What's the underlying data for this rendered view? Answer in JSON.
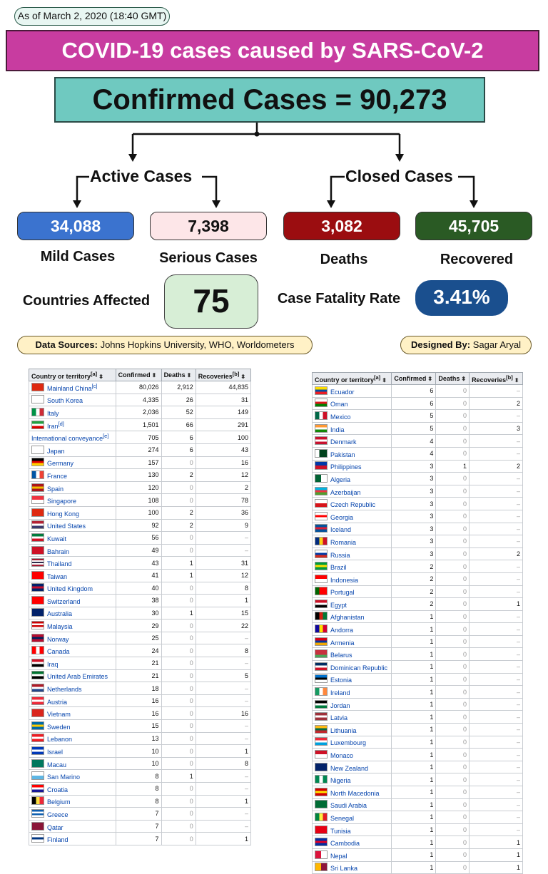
{
  "as_of": "As of March 2, 2020 (18:40 GMT)",
  "banner_title": "COVID-19 cases caused by SARS-CoV-2",
  "confirmed_text": "Confirmed Cases = 90,273",
  "active_label": "Active Cases",
  "closed_label": "Closed Cases",
  "stats": {
    "mild": {
      "value": "34,088",
      "label": "Mild Cases",
      "color": "#3b73cf"
    },
    "serious": {
      "value": "7,398",
      "label": "Serious Cases",
      "color": "#fde6e8"
    },
    "deaths": {
      "value": "3,082",
      "label": "Deaths",
      "color": "#9b0d10"
    },
    "recovered": {
      "value": "45,705",
      "label": "Recovered",
      "color": "#2a5a24"
    }
  },
  "countries_label": "Countries Affected",
  "countries_value": "75",
  "cfr_label": "Case Fatality Rate",
  "cfr_value": "3.41%",
  "sources_label": "Data Sources:",
  "sources_text": "Johns Hopkins University, WHO, Worldometers",
  "designer_label": "Designed By:",
  "designer_text": "Sagar Aryal",
  "table_headers": {
    "country": "Country or territory",
    "country_note": "[a]",
    "confirmed": "Confirmed",
    "deaths": "Deaths",
    "recoveries": "Recoveries",
    "recoveries_note": "[b]",
    "sort_icon": "⬍"
  },
  "table_left": [
    {
      "country": "Mainland China",
      "note": "[c]",
      "confirmed": "80,026",
      "deaths": "2,912",
      "recoveries": "44,835",
      "flag": [
        "#de2910"
      ]
    },
    {
      "country": "South Korea",
      "confirmed": "4,335",
      "deaths": "26",
      "recoveries": "31",
      "flag": [
        "#ffffff"
      ]
    },
    {
      "country": "Italy",
      "confirmed": "2,036",
      "deaths": "52",
      "recoveries": "149",
      "flag": [
        "#009246",
        "#ffffff",
        "#ce2b37"
      ],
      "dir": "v"
    },
    {
      "country": "Iran",
      "note": "[d]",
      "confirmed": "1,501",
      "deaths": "66",
      "recoveries": "291",
      "flag": [
        "#239f40",
        "#ffffff",
        "#da0000"
      ]
    },
    {
      "country": "International conveyance",
      "note": "[e]",
      "confirmed": "705",
      "deaths": "6",
      "recoveries": "100",
      "flag": []
    },
    {
      "country": "Japan",
      "confirmed": "274",
      "deaths": "6",
      "recoveries": "43",
      "flag": [
        "#ffffff"
      ]
    },
    {
      "country": "Germany",
      "confirmed": "157",
      "deaths": "0",
      "recoveries": "16",
      "flag": [
        "#000000",
        "#dd0000",
        "#ffce00"
      ]
    },
    {
      "country": "France",
      "confirmed": "130",
      "deaths": "2",
      "recoveries": "12",
      "flag": [
        "#0055a4",
        "#ffffff",
        "#ef4135"
      ],
      "dir": "v"
    },
    {
      "country": "Spain",
      "confirmed": "120",
      "deaths": "0",
      "recoveries": "2",
      "flag": [
        "#aa151b",
        "#f1bf00",
        "#aa151b"
      ]
    },
    {
      "country": "Singapore",
      "confirmed": "108",
      "deaths": "0",
      "recoveries": "78",
      "flag": [
        "#ef3340",
        "#ffffff"
      ]
    },
    {
      "country": "Hong Kong",
      "confirmed": "100",
      "deaths": "2",
      "recoveries": "36",
      "flag": [
        "#de2910"
      ]
    },
    {
      "country": "United States",
      "confirmed": "92",
      "deaths": "2",
      "recoveries": "9",
      "flag": [
        "#b22234",
        "#ffffff",
        "#3c3b6e"
      ]
    },
    {
      "country": "Kuwait",
      "confirmed": "56",
      "deaths": "0",
      "recoveries": "–",
      "flag": [
        "#007a3d",
        "#ffffff",
        "#ce1126"
      ]
    },
    {
      "country": "Bahrain",
      "confirmed": "49",
      "deaths": "0",
      "recoveries": "–",
      "flag": [
        "#ce1126"
      ]
    },
    {
      "country": "Thailand",
      "confirmed": "43",
      "deaths": "1",
      "recoveries": "31",
      "flag": [
        "#a51931",
        "#ffffff",
        "#2d2a4a",
        "#ffffff",
        "#a51931"
      ]
    },
    {
      "country": "Taiwan",
      "confirmed": "41",
      "deaths": "1",
      "recoveries": "12",
      "flag": [
        "#fe0000"
      ]
    },
    {
      "country": "United Kingdom",
      "confirmed": "40",
      "deaths": "0",
      "recoveries": "8",
      "flag": [
        "#012169",
        "#c8102e",
        "#012169"
      ]
    },
    {
      "country": "Switzerland",
      "confirmed": "38",
      "deaths": "0",
      "recoveries": "1",
      "flag": [
        "#ff0000"
      ]
    },
    {
      "country": "Australia",
      "confirmed": "30",
      "deaths": "1",
      "recoveries": "15",
      "flag": [
        "#012169"
      ]
    },
    {
      "country": "Malaysia",
      "confirmed": "29",
      "deaths": "0",
      "recoveries": "22",
      "flag": [
        "#cc0001",
        "#ffffff",
        "#cc0001",
        "#ffffff"
      ]
    },
    {
      "country": "Norway",
      "confirmed": "25",
      "deaths": "0",
      "recoveries": "–",
      "flag": [
        "#ba0c2f",
        "#00205b",
        "#ba0c2f"
      ]
    },
    {
      "country": "Canada",
      "confirmed": "24",
      "deaths": "0",
      "recoveries": "8",
      "flag": [
        "#ff0000",
        "#ffffff",
        "#ff0000"
      ],
      "dir": "v"
    },
    {
      "country": "Iraq",
      "confirmed": "21",
      "deaths": "0",
      "recoveries": "–",
      "flag": [
        "#ce1126",
        "#ffffff",
        "#000000"
      ]
    },
    {
      "country": "United Arab Emirates",
      "confirmed": "21",
      "deaths": "0",
      "recoveries": "5",
      "flag": [
        "#00732f",
        "#ffffff",
        "#000000"
      ]
    },
    {
      "country": "Netherlands",
      "confirmed": "18",
      "deaths": "0",
      "recoveries": "–",
      "flag": [
        "#ae1c28",
        "#ffffff",
        "#21468b"
      ]
    },
    {
      "country": "Austria",
      "confirmed": "16",
      "deaths": "0",
      "recoveries": "–",
      "flag": [
        "#ed2939",
        "#ffffff",
        "#ed2939"
      ]
    },
    {
      "country": "Vietnam",
      "confirmed": "16",
      "deaths": "0",
      "recoveries": "16",
      "flag": [
        "#da251d"
      ]
    },
    {
      "country": "Sweden",
      "confirmed": "15",
      "deaths": "0",
      "recoveries": "–",
      "flag": [
        "#006aa7",
        "#fecc00",
        "#006aa7"
      ]
    },
    {
      "country": "Lebanon",
      "confirmed": "13",
      "deaths": "0",
      "recoveries": "–",
      "flag": [
        "#ed1c24",
        "#ffffff",
        "#ed1c24"
      ]
    },
    {
      "country": "Israel",
      "confirmed": "10",
      "deaths": "0",
      "recoveries": "1",
      "flag": [
        "#0038b8",
        "#ffffff",
        "#0038b8"
      ]
    },
    {
      "country": "Macau",
      "confirmed": "10",
      "deaths": "0",
      "recoveries": "8",
      "flag": [
        "#00785e"
      ]
    },
    {
      "country": "San Marino",
      "confirmed": "8",
      "deaths": "1",
      "recoveries": "–",
      "flag": [
        "#ffffff",
        "#5eb6e4"
      ]
    },
    {
      "country": "Croatia",
      "confirmed": "8",
      "deaths": "0",
      "recoveries": "–",
      "flag": [
        "#ff0000",
        "#ffffff",
        "#171796"
      ]
    },
    {
      "country": "Belgium",
      "confirmed": "8",
      "deaths": "0",
      "recoveries": "1",
      "flag": [
        "#000000",
        "#fae042",
        "#ed2939"
      ],
      "dir": "v"
    },
    {
      "country": "Greece",
      "confirmed": "7",
      "deaths": "0",
      "recoveries": "–",
      "flag": [
        "#0d5eaf",
        "#ffffff",
        "#0d5eaf",
        "#ffffff"
      ]
    },
    {
      "country": "Qatar",
      "confirmed": "7",
      "deaths": "0",
      "recoveries": "–",
      "flag": [
        "#8a1538"
      ]
    },
    {
      "country": "Finland",
      "confirmed": "7",
      "deaths": "0",
      "recoveries": "1",
      "flag": [
        "#ffffff",
        "#003580",
        "#ffffff"
      ]
    }
  ],
  "table_right": [
    {
      "country": "Ecuador",
      "confirmed": "6",
      "deaths": "0",
      "recoveries": "–",
      "flag": [
        "#ffdd00",
        "#034ea2",
        "#ed1c24"
      ]
    },
    {
      "country": "Oman",
      "confirmed": "6",
      "deaths": "0",
      "recoveries": "2",
      "flag": [
        "#ffffff",
        "#db161b",
        "#008000"
      ]
    },
    {
      "country": "Mexico",
      "confirmed": "5",
      "deaths": "0",
      "recoveries": "–",
      "flag": [
        "#006847",
        "#ffffff",
        "#ce1126"
      ],
      "dir": "v"
    },
    {
      "country": "India",
      "confirmed": "5",
      "deaths": "0",
      "recoveries": "3",
      "flag": [
        "#ff9933",
        "#ffffff",
        "#138808"
      ]
    },
    {
      "country": "Denmark",
      "confirmed": "4",
      "deaths": "0",
      "recoveries": "–",
      "flag": [
        "#c8102e",
        "#ffffff",
        "#c8102e"
      ]
    },
    {
      "country": "Pakistan",
      "confirmed": "4",
      "deaths": "0",
      "recoveries": "–",
      "flag": [
        "#ffffff",
        "#01411c",
        "#01411c"
      ],
      "dir": "v"
    },
    {
      "country": "Philippines",
      "confirmed": "3",
      "deaths": "1",
      "recoveries": "2",
      "flag": [
        "#0038a8",
        "#ce1126"
      ]
    },
    {
      "country": "Algeria",
      "confirmed": "3",
      "deaths": "0",
      "recoveries": "–",
      "flag": [
        "#006233",
        "#ffffff"
      ],
      "dir": "v"
    },
    {
      "country": "Azerbaijan",
      "confirmed": "3",
      "deaths": "0",
      "recoveries": "–",
      "flag": [
        "#00b5e2",
        "#ef3340",
        "#509e2f"
      ]
    },
    {
      "country": "Czech Republic",
      "confirmed": "3",
      "deaths": "0",
      "recoveries": "–",
      "flag": [
        "#ffffff",
        "#d7141a"
      ]
    },
    {
      "country": "Georgia",
      "confirmed": "3",
      "deaths": "0",
      "recoveries": "–",
      "flag": [
        "#ffffff",
        "#ff0000",
        "#ffffff"
      ]
    },
    {
      "country": "Iceland",
      "confirmed": "3",
      "deaths": "0",
      "recoveries": "–",
      "flag": [
        "#02529c",
        "#dc1e35",
        "#02529c"
      ]
    },
    {
      "country": "Romania",
      "confirmed": "3",
      "deaths": "0",
      "recoveries": "–",
      "flag": [
        "#002b7f",
        "#fcd116",
        "#ce1126"
      ],
      "dir": "v"
    },
    {
      "country": "Russia",
      "confirmed": "3",
      "deaths": "0",
      "recoveries": "2",
      "flag": [
        "#ffffff",
        "#0039a6",
        "#d52b1e"
      ]
    },
    {
      "country": "Brazil",
      "confirmed": "2",
      "deaths": "0",
      "recoveries": "–",
      "flag": [
        "#009c3b",
        "#ffdf00",
        "#009c3b"
      ]
    },
    {
      "country": "Indonesia",
      "confirmed": "2",
      "deaths": "0",
      "recoveries": "–",
      "flag": [
        "#ff0000",
        "#ffffff"
      ]
    },
    {
      "country": "Portugal",
      "confirmed": "2",
      "deaths": "0",
      "recoveries": "–",
      "flag": [
        "#006600",
        "#ff0000",
        "#ff0000"
      ],
      "dir": "v"
    },
    {
      "country": "Egypt",
      "confirmed": "2",
      "deaths": "0",
      "recoveries": "1",
      "flag": [
        "#ce1126",
        "#ffffff",
        "#000000"
      ]
    },
    {
      "country": "Afghanistan",
      "confirmed": "1",
      "deaths": "0",
      "recoveries": "–",
      "flag": [
        "#000000",
        "#d32011",
        "#007a36"
      ],
      "dir": "v"
    },
    {
      "country": "Andorra",
      "confirmed": "1",
      "deaths": "0",
      "recoveries": "–",
      "flag": [
        "#10069f",
        "#fedf00",
        "#d50032"
      ],
      "dir": "v"
    },
    {
      "country": "Armenia",
      "confirmed": "1",
      "deaths": "0",
      "recoveries": "–",
      "flag": [
        "#d90012",
        "#0033a0",
        "#f2a800"
      ]
    },
    {
      "country": "Belarus",
      "confirmed": "1",
      "deaths": "0",
      "recoveries": "–",
      "flag": [
        "#c8313e",
        "#c8313e",
        "#4aa657"
      ]
    },
    {
      "country": "Dominican Republic",
      "confirmed": "1",
      "deaths": "0",
      "recoveries": "–",
      "flag": [
        "#002d62",
        "#ffffff",
        "#ce1126"
      ]
    },
    {
      "country": "Estonia",
      "confirmed": "1",
      "deaths": "0",
      "recoveries": "–",
      "flag": [
        "#0072ce",
        "#000000",
        "#ffffff"
      ]
    },
    {
      "country": "Ireland",
      "confirmed": "1",
      "deaths": "0",
      "recoveries": "–",
      "flag": [
        "#169b62",
        "#ffffff",
        "#ff883e"
      ],
      "dir": "v"
    },
    {
      "country": "Jordan",
      "confirmed": "1",
      "deaths": "0",
      "recoveries": "–",
      "flag": [
        "#000000",
        "#ffffff",
        "#007a3d"
      ]
    },
    {
      "country": "Latvia",
      "confirmed": "1",
      "deaths": "0",
      "recoveries": "–",
      "flag": [
        "#9e3039",
        "#ffffff",
        "#9e3039"
      ]
    },
    {
      "country": "Lithuania",
      "confirmed": "1",
      "deaths": "0",
      "recoveries": "–",
      "flag": [
        "#fdb913",
        "#006a44",
        "#c1272d"
      ]
    },
    {
      "country": "Luxembourg",
      "confirmed": "1",
      "deaths": "0",
      "recoveries": "–",
      "flag": [
        "#ed2939",
        "#ffffff",
        "#00a1de"
      ]
    },
    {
      "country": "Monaco",
      "confirmed": "1",
      "deaths": "0",
      "recoveries": "–",
      "flag": [
        "#ce1126",
        "#ffffff"
      ]
    },
    {
      "country": "New Zealand",
      "confirmed": "1",
      "deaths": "0",
      "recoveries": "–",
      "flag": [
        "#012169"
      ]
    },
    {
      "country": "Nigeria",
      "confirmed": "1",
      "deaths": "0",
      "recoveries": "–",
      "flag": [
        "#008751",
        "#ffffff",
        "#008751"
      ],
      "dir": "v"
    },
    {
      "country": "North Macedonia",
      "confirmed": "1",
      "deaths": "0",
      "recoveries": "–",
      "flag": [
        "#d20000",
        "#ffe600",
        "#d20000"
      ]
    },
    {
      "country": "Saudi Arabia",
      "confirmed": "1",
      "deaths": "0",
      "recoveries": "–",
      "flag": [
        "#006c35"
      ]
    },
    {
      "country": "Senegal",
      "confirmed": "1",
      "deaths": "0",
      "recoveries": "–",
      "flag": [
        "#00853f",
        "#fdef42",
        "#e31b23"
      ],
      "dir": "v"
    },
    {
      "country": "Tunisia",
      "confirmed": "1",
      "deaths": "0",
      "recoveries": "–",
      "flag": [
        "#e70013"
      ]
    },
    {
      "country": "Cambodia",
      "confirmed": "1",
      "deaths": "0",
      "recoveries": "1",
      "flag": [
        "#032ea1",
        "#e00025",
        "#032ea1"
      ]
    },
    {
      "country": "Nepal",
      "confirmed": "1",
      "deaths": "0",
      "recoveries": "1",
      "flag": [
        "#dc143c",
        "#ffffff"
      ],
      "dir": "v"
    },
    {
      "country": "Sri Lanka",
      "confirmed": "1",
      "deaths": "0",
      "recoveries": "1",
      "flag": [
        "#ffb700",
        "#8d153a"
      ],
      "dir": "v"
    }
  ]
}
